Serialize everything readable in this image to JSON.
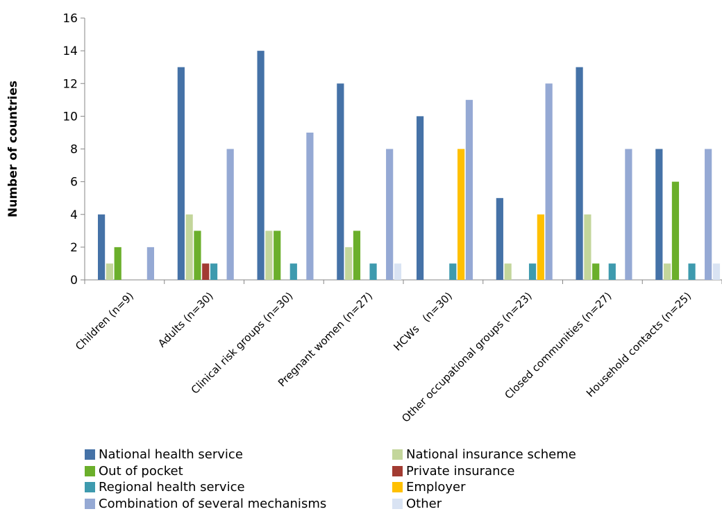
{
  "chart_data": {
    "type": "bar",
    "ylabel": "Number of countries",
    "ylim": [
      0,
      16
    ],
    "yticks": [
      "0",
      "2",
      "4",
      "6",
      "8",
      "10",
      "12",
      "14",
      "16"
    ],
    "categories": [
      "Children (n=9)",
      "Adults (n=30)",
      "Clinical risk groups (n=30)",
      "Pregnant women (n=27)",
      "HCWs   (n=30)",
      "Other occupational groups (n=23)",
      "Closed communities (n=27)",
      "Household contacts (n=25)"
    ],
    "series": [
      {
        "name": "National health service",
        "color": "#4572A7",
        "values": [
          4,
          13,
          14,
          12,
          10,
          5,
          13,
          8
        ]
      },
      {
        "name": "National insurance scheme",
        "color": "#C3D69B",
        "values": [
          1,
          4,
          3,
          2,
          0,
          1,
          4,
          1
        ]
      },
      {
        "name": "Out of pocket",
        "color": "#6BAF2B",
        "values": [
          2,
          3,
          3,
          3,
          0,
          0,
          1,
          6
        ]
      },
      {
        "name": "Private insurance",
        "color": "#A23B32",
        "values": [
          0,
          1,
          0,
          0,
          0,
          0,
          0,
          0
        ]
      },
      {
        "name": "Regional health service",
        "color": "#3E9AAE",
        "values": [
          0,
          1,
          1,
          1,
          1,
          1,
          1,
          1
        ]
      },
      {
        "name": "Employer",
        "color": "#FFC000",
        "values": [
          0,
          0,
          0,
          0,
          8,
          4,
          0,
          0
        ]
      },
      {
        "name": "Combination of several mechanisms",
        "color": "#95A9D4",
        "values": [
          2,
          8,
          9,
          8,
          11,
          12,
          8,
          8
        ]
      },
      {
        "name": "Other",
        "color": "#D9E3F3",
        "values": [
          0,
          0,
          0,
          1,
          0,
          0,
          0,
          1
        ]
      }
    ],
    "legend_placement": "bottom",
    "grid": false
  },
  "legend_order": [
    0,
    1,
    2,
    3,
    4,
    5,
    6,
    7
  ]
}
